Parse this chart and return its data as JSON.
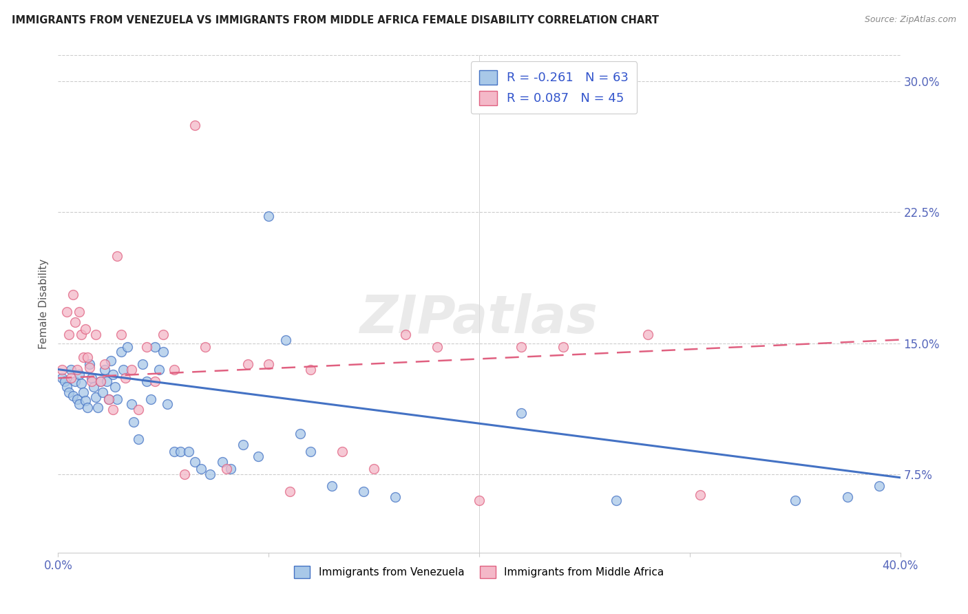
{
  "title": "IMMIGRANTS FROM VENEZUELA VS IMMIGRANTS FROM MIDDLE AFRICA FEMALE DISABILITY CORRELATION CHART",
  "source": "Source: ZipAtlas.com",
  "ylabel": "Female Disability",
  "yticks": [
    "7.5%",
    "15.0%",
    "22.5%",
    "30.0%"
  ],
  "ytick_vals": [
    0.075,
    0.15,
    0.225,
    0.3
  ],
  "xlim": [
    0.0,
    0.4
  ],
  "ylim": [
    0.03,
    0.315
  ],
  "legend1_r": "-0.261",
  "legend1_n": "63",
  "legend2_r": "0.087",
  "legend2_n": "45",
  "color_blue": "#a8c8e8",
  "color_pink": "#f4b8c8",
  "color_blue_line": "#4472c4",
  "color_pink_line": "#e06080",
  "watermark": "ZIPatlas",
  "venezuela_x": [
    0.002,
    0.003,
    0.004,
    0.005,
    0.006,
    0.007,
    0.008,
    0.009,
    0.01,
    0.01,
    0.011,
    0.012,
    0.013,
    0.014,
    0.015,
    0.016,
    0.017,
    0.018,
    0.019,
    0.02,
    0.021,
    0.022,
    0.023,
    0.024,
    0.025,
    0.026,
    0.027,
    0.028,
    0.03,
    0.031,
    0.033,
    0.035,
    0.036,
    0.038,
    0.04,
    0.042,
    0.044,
    0.046,
    0.048,
    0.05,
    0.052,
    0.055,
    0.058,
    0.062,
    0.065,
    0.068,
    0.072,
    0.078,
    0.082,
    0.088,
    0.095,
    0.1,
    0.108,
    0.115,
    0.12,
    0.13,
    0.145,
    0.16,
    0.22,
    0.265,
    0.35,
    0.375,
    0.39
  ],
  "venezuela_y": [
    0.13,
    0.128,
    0.125,
    0.122,
    0.135,
    0.12,
    0.128,
    0.118,
    0.132,
    0.115,
    0.127,
    0.122,
    0.117,
    0.113,
    0.138,
    0.13,
    0.125,
    0.119,
    0.113,
    0.128,
    0.122,
    0.135,
    0.128,
    0.118,
    0.14,
    0.132,
    0.125,
    0.118,
    0.145,
    0.135,
    0.148,
    0.115,
    0.105,
    0.095,
    0.138,
    0.128,
    0.118,
    0.148,
    0.135,
    0.145,
    0.115,
    0.088,
    0.088,
    0.088,
    0.082,
    0.078,
    0.075,
    0.082,
    0.078,
    0.092,
    0.085,
    0.223,
    0.152,
    0.098,
    0.088,
    0.068,
    0.065,
    0.062,
    0.11,
    0.06,
    0.06,
    0.062,
    0.068
  ],
  "midafrica_x": [
    0.002,
    0.004,
    0.005,
    0.006,
    0.007,
    0.008,
    0.009,
    0.01,
    0.011,
    0.012,
    0.013,
    0.014,
    0.015,
    0.016,
    0.018,
    0.02,
    0.022,
    0.024,
    0.026,
    0.028,
    0.03,
    0.032,
    0.035,
    0.038,
    0.042,
    0.046,
    0.05,
    0.055,
    0.06,
    0.065,
    0.07,
    0.08,
    0.09,
    0.1,
    0.11,
    0.12,
    0.135,
    0.15,
    0.165,
    0.18,
    0.2,
    0.22,
    0.24,
    0.28,
    0.305
  ],
  "midafrica_y": [
    0.135,
    0.168,
    0.155,
    0.13,
    0.178,
    0.162,
    0.135,
    0.168,
    0.155,
    0.142,
    0.158,
    0.142,
    0.136,
    0.128,
    0.155,
    0.128,
    0.138,
    0.118,
    0.112,
    0.2,
    0.155,
    0.13,
    0.135,
    0.112,
    0.148,
    0.128,
    0.155,
    0.135,
    0.075,
    0.275,
    0.148,
    0.078,
    0.138,
    0.138,
    0.065,
    0.135,
    0.088,
    0.078,
    0.155,
    0.148,
    0.06,
    0.148,
    0.148,
    0.155,
    0.063
  ],
  "venezuela_trend_x": [
    0.0,
    0.4
  ],
  "venezuela_trend_y": [
    0.135,
    0.073
  ],
  "midafrica_trend_x": [
    0.0,
    0.4
  ],
  "midafrica_trend_y": [
    0.13,
    0.152
  ]
}
